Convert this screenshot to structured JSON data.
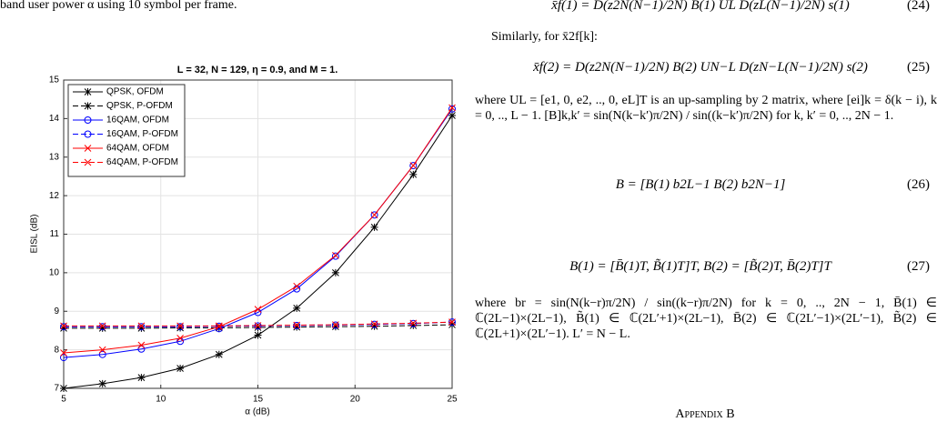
{
  "left_text": "band user power α using 10 symbol per frame.",
  "chart_data": {
    "type": "line",
    "title": "L = 32, N = 129, η = 0.9, and M = 1.",
    "xlabel": "α (dB)",
    "ylabel": "EISL (dB)",
    "x": [
      5,
      7,
      9,
      11,
      13,
      15,
      17,
      19,
      21,
      23,
      25
    ],
    "xlim": [
      5,
      25
    ],
    "xticks": [
      5,
      10,
      15,
      20,
      25
    ],
    "ylim": [
      7,
      15
    ],
    "yticks": [
      7,
      8,
      9,
      10,
      11,
      12,
      13,
      14,
      15
    ],
    "grid": true,
    "legend": "upper-left",
    "series": [
      {
        "name": "QPSK, OFDM",
        "color": "#000000",
        "linestyle": "solid",
        "marker": "star",
        "values": [
          7.0,
          7.12,
          7.28,
          7.52,
          7.88,
          8.38,
          9.08,
          10.0,
          11.18,
          12.55,
          14.08
        ]
      },
      {
        "name": "QPSK, P-OFDM",
        "color": "#000000",
        "linestyle": "dashed",
        "marker": "star",
        "values": [
          8.56,
          8.56,
          8.56,
          8.57,
          8.57,
          8.58,
          8.59,
          8.6,
          8.61,
          8.63,
          8.65
        ]
      },
      {
        "name": "16QAM, OFDM",
        "color": "#0000ff",
        "linestyle": "solid",
        "marker": "circle",
        "values": [
          7.8,
          7.88,
          8.02,
          8.22,
          8.55,
          8.97,
          9.58,
          10.43,
          11.5,
          12.78,
          14.25
        ]
      },
      {
        "name": "16QAM, P-OFDM",
        "color": "#0000ff",
        "linestyle": "dashed",
        "marker": "circle",
        "values": [
          8.6,
          8.6,
          8.6,
          8.6,
          8.61,
          8.62,
          8.63,
          8.64,
          8.66,
          8.68,
          8.72
        ]
      },
      {
        "name": "64QAM, OFDM",
        "color": "#ff0000",
        "linestyle": "solid",
        "marker": "x",
        "values": [
          7.92,
          8.0,
          8.12,
          8.3,
          8.6,
          9.05,
          9.65,
          10.45,
          11.5,
          12.78,
          14.28
        ]
      },
      {
        "name": "64QAM, P-OFDM",
        "color": "#ff0000",
        "linestyle": "dashed",
        "marker": "x",
        "values": [
          8.62,
          8.62,
          8.62,
          8.62,
          8.62,
          8.63,
          8.64,
          8.65,
          8.67,
          8.69,
          8.72
        ]
      }
    ]
  },
  "right": {
    "eq24": {
      "formula": "x̄f(1) = D(z2N(N−1)/2N) B(1) UL D(zL(N−1)/2N) s(1)",
      "number": "(24)"
    },
    "para1": "Similarly, for x̄2f[k]:",
    "eq25": {
      "formula": "x̄f(2) = D(z2N(N−1)/2N) B(2) UN−L D(zN−L(N−1)/2N) s(2)",
      "number": "(25)"
    },
    "para2": "where UL = [e1, 0, e2, .., 0, eL]T is an up-sampling by 2 matrix, where [ei]k = δ(k − i), k = 0, .., L − 1. [B]k,k′ = sin(N(k−k′)π/2N) / sin((k−k′)π/2N) for k, k′ = 0, .., 2N − 1.",
    "eq26": {
      "formula": "B = [B(1)   b2L−1   B(2)   b2N−1]",
      "number": "(26)"
    },
    "eq27": {
      "formula": "B(1) = [B̄(1)T, B̃(1)T]T, B(2) = [B̃(2)T, B̄(2)T]T",
      "number": "(27)"
    },
    "para3": "where br = sin(N(k−r)π/2N) / sin((k−r)π/2N) for k = 0, .., 2N − 1, B̄(1) ∈ ℂ(2L−1)×(2L−1), B̃(1) ∈ ℂ(2L′+1)×(2L−1), B̄(2) ∈ ℂ(2L′−1)×(2L′−1), B̃(2) ∈ ℂ(2L+1)×(2L′−1). L′ = N − L.",
    "appendix": "Appendix B"
  }
}
